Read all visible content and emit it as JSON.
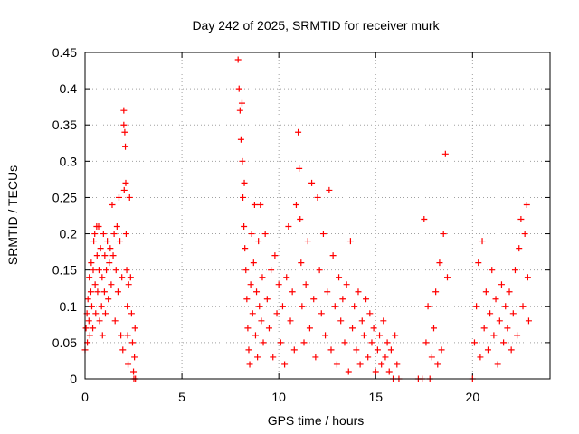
{
  "chart_data": {
    "type": "scatter",
    "title": "Day 242 of 2025, SRMTID for receiver murk",
    "xlabel": "GPS time / hours",
    "ylabel": "SRMTID / TECUs",
    "xlim": [
      0,
      24
    ],
    "ylim": [
      0,
      0.45
    ],
    "x_ticks": [
      0,
      5,
      10,
      15,
      20
    ],
    "y_ticks": [
      0,
      0.05,
      0.1,
      0.15,
      0.2,
      0.25,
      0.3,
      0.35,
      0.4,
      0.45
    ],
    "x_tick_labels": [
      "0",
      "5",
      "10",
      "15",
      "20"
    ],
    "y_tick_labels": [
      "0",
      "0.05",
      "0.1",
      "0.15",
      "0.2",
      "0.25",
      "0.3",
      "0.35",
      "0.4",
      "0.45"
    ],
    "grid": true,
    "marker": "+",
    "color": "#ff0000",
    "series": [
      {
        "points": [
          [
            0.0,
            0.04
          ],
          [
            0.05,
            0.07
          ],
          [
            0.1,
            0.09
          ],
          [
            0.12,
            0.05
          ],
          [
            0.15,
            0.11
          ],
          [
            0.2,
            0.08
          ],
          [
            0.22,
            0.14
          ],
          [
            0.25,
            0.06
          ],
          [
            0.3,
            0.12
          ],
          [
            0.32,
            0.16
          ],
          [
            0.35,
            0.1
          ],
          [
            0.4,
            0.07
          ],
          [
            0.42,
            0.15
          ],
          [
            0.45,
            0.19
          ],
          [
            0.5,
            0.2
          ],
          [
            0.52,
            0.13
          ],
          [
            0.55,
            0.09
          ],
          [
            0.6,
            0.21
          ],
          [
            0.62,
            0.17
          ],
          [
            0.65,
            0.12
          ],
          [
            0.7,
            0.21
          ],
          [
            0.72,
            0.15
          ],
          [
            0.75,
            0.08
          ],
          [
            0.8,
            0.18
          ],
          [
            0.85,
            0.1
          ],
          [
            0.88,
            0.14
          ],
          [
            0.9,
            0.06
          ],
          [
            0.95,
            0.2
          ],
          [
            1.0,
            0.12
          ],
          [
            1.02,
            0.17
          ],
          [
            1.05,
            0.09
          ],
          [
            1.1,
            0.15
          ],
          [
            1.15,
            0.19
          ],
          [
            1.2,
            0.11
          ],
          [
            1.25,
            0.16
          ],
          [
            1.3,
            0.18
          ],
          [
            1.35,
            0.13
          ],
          [
            1.4,
            0.24
          ],
          [
            1.45,
            0.17
          ],
          [
            1.5,
            0.2
          ],
          [
            1.55,
            0.08
          ],
          [
            1.6,
            0.15
          ],
          [
            1.65,
            0.21
          ],
          [
            1.7,
            0.12
          ],
          [
            1.75,
            0.25
          ],
          [
            1.8,
            0.19
          ],
          [
            1.85,
            0.06
          ],
          [
            1.9,
            0.14
          ],
          [
            1.95,
            0.04
          ],
          [
            2.0,
            0.35
          ],
          [
            2.0,
            0.37
          ],
          [
            2.02,
            0.26
          ],
          [
            2.05,
            0.34
          ],
          [
            2.08,
            0.32
          ],
          [
            2.1,
            0.27
          ],
          [
            2.12,
            0.2
          ],
          [
            2.15,
            0.15
          ],
          [
            2.18,
            0.1
          ],
          [
            2.2,
            0.06
          ],
          [
            2.22,
            0.02
          ],
          [
            2.25,
            0.13
          ],
          [
            2.3,
            0.25
          ],
          [
            2.35,
            0.14
          ],
          [
            2.4,
            0.09
          ],
          [
            2.45,
            0.05
          ],
          [
            2.5,
            0.01
          ],
          [
            2.52,
            0.0
          ],
          [
            2.55,
            0.03
          ],
          [
            2.58,
            0.07
          ],
          [
            2.6,
            0.0
          ],
          [
            7.9,
            0.44
          ],
          [
            7.95,
            0.4
          ],
          [
            8.0,
            0.37
          ],
          [
            8.05,
            0.33
          ],
          [
            8.1,
            0.38
          ],
          [
            8.12,
            0.3
          ],
          [
            8.15,
            0.25
          ],
          [
            8.2,
            0.21
          ],
          [
            8.22,
            0.27
          ],
          [
            8.25,
            0.18
          ],
          [
            8.3,
            0.15
          ],
          [
            8.35,
            0.11
          ],
          [
            8.4,
            0.07
          ],
          [
            8.45,
            0.04
          ],
          [
            8.5,
            0.02
          ],
          [
            8.55,
            0.13
          ],
          [
            8.6,
            0.2
          ],
          [
            8.65,
            0.09
          ],
          [
            8.7,
            0.16
          ],
          [
            8.75,
            0.24
          ],
          [
            8.8,
            0.06
          ],
          [
            8.85,
            0.12
          ],
          [
            8.9,
            0.03
          ],
          [
            8.95,
            0.19
          ],
          [
            9.0,
            0.1
          ],
          [
            9.05,
            0.24
          ],
          [
            9.1,
            0.08
          ],
          [
            9.15,
            0.14
          ],
          [
            9.2,
            0.05
          ],
          [
            9.3,
            0.2
          ],
          [
            9.4,
            0.11
          ],
          [
            9.5,
            0.07
          ],
          [
            9.6,
            0.15
          ],
          [
            9.7,
            0.03
          ],
          [
            9.8,
            0.17
          ],
          [
            9.9,
            0.09
          ],
          [
            10.0,
            0.13
          ],
          [
            10.1,
            0.05
          ],
          [
            10.2,
            0.1
          ],
          [
            10.3,
            0.02
          ],
          [
            10.4,
            0.14
          ],
          [
            10.5,
            0.21
          ],
          [
            10.6,
            0.08
          ],
          [
            10.7,
            0.12
          ],
          [
            10.8,
            0.04
          ],
          [
            10.9,
            0.24
          ],
          [
            11.0,
            0.34
          ],
          [
            11.05,
            0.29
          ],
          [
            11.1,
            0.22
          ],
          [
            11.15,
            0.16
          ],
          [
            11.2,
            0.1
          ],
          [
            11.3,
            0.05
          ],
          [
            11.4,
            0.13
          ],
          [
            11.5,
            0.19
          ],
          [
            11.6,
            0.07
          ],
          [
            11.7,
            0.27
          ],
          [
            11.8,
            0.11
          ],
          [
            11.9,
            0.03
          ],
          [
            12.0,
            0.25
          ],
          [
            12.1,
            0.15
          ],
          [
            12.2,
            0.09
          ],
          [
            12.3,
            0.2
          ],
          [
            12.4,
            0.06
          ],
          [
            12.5,
            0.12
          ],
          [
            12.6,
            0.26
          ],
          [
            12.7,
            0.04
          ],
          [
            12.8,
            0.17
          ],
          [
            12.9,
            0.1
          ],
          [
            13.0,
            0.02
          ],
          [
            13.1,
            0.14
          ],
          [
            13.2,
            0.08
          ],
          [
            13.3,
            0.11
          ],
          [
            13.4,
            0.05
          ],
          [
            13.5,
            0.13
          ],
          [
            13.6,
            0.01
          ],
          [
            13.7,
            0.19
          ],
          [
            13.8,
            0.07
          ],
          [
            13.9,
            0.1
          ],
          [
            14.0,
            0.04
          ],
          [
            14.1,
            0.12
          ],
          [
            14.2,
            0.02
          ],
          [
            14.3,
            0.08
          ],
          [
            14.4,
            0.06
          ],
          [
            14.5,
            0.11
          ],
          [
            14.6,
            0.03
          ],
          [
            14.7,
            0.09
          ],
          [
            14.8,
            0.05
          ],
          [
            14.9,
            0.07
          ],
          [
            15.0,
            0.01
          ],
          [
            15.1,
            0.04
          ],
          [
            15.2,
            0.06
          ],
          [
            15.3,
            0.02
          ],
          [
            15.4,
            0.08
          ],
          [
            15.5,
            0.03
          ],
          [
            15.6,
            0.05
          ],
          [
            15.7,
            0.01
          ],
          [
            15.8,
            0.04
          ],
          [
            15.9,
            0.0
          ],
          [
            16.0,
            0.06
          ],
          [
            16.1,
            0.02
          ],
          [
            16.2,
            0.0
          ],
          [
            17.2,
            0.0
          ],
          [
            17.4,
            0.0
          ],
          [
            17.5,
            0.22
          ],
          [
            17.6,
            0.05
          ],
          [
            17.7,
            0.1
          ],
          [
            17.8,
            0.0
          ],
          [
            17.9,
            0.03
          ],
          [
            18.0,
            0.07
          ],
          [
            18.1,
            0.12
          ],
          [
            18.2,
            0.02
          ],
          [
            18.3,
            0.16
          ],
          [
            18.4,
            0.04
          ],
          [
            18.5,
            0.2
          ],
          [
            18.6,
            0.31
          ],
          [
            18.7,
            0.14
          ],
          [
            20.0,
            0.0
          ],
          [
            20.1,
            0.05
          ],
          [
            20.2,
            0.1
          ],
          [
            20.3,
            0.16
          ],
          [
            20.4,
            0.03
          ],
          [
            20.5,
            0.19
          ],
          [
            20.6,
            0.07
          ],
          [
            20.7,
            0.12
          ],
          [
            20.8,
            0.04
          ],
          [
            20.9,
            0.09
          ],
          [
            21.0,
            0.15
          ],
          [
            21.1,
            0.06
          ],
          [
            21.2,
            0.11
          ],
          [
            21.3,
            0.02
          ],
          [
            21.4,
            0.08
          ],
          [
            21.5,
            0.13
          ],
          [
            21.6,
            0.05
          ],
          [
            21.7,
            0.1
          ],
          [
            21.8,
            0.07
          ],
          [
            21.9,
            0.12
          ],
          [
            22.0,
            0.04
          ],
          [
            22.1,
            0.09
          ],
          [
            22.2,
            0.15
          ],
          [
            22.3,
            0.06
          ],
          [
            22.4,
            0.18
          ],
          [
            22.5,
            0.22
          ],
          [
            22.6,
            0.1
          ],
          [
            22.7,
            0.2
          ],
          [
            22.8,
            0.24
          ],
          [
            22.85,
            0.14
          ],
          [
            22.9,
            0.08
          ]
        ]
      }
    ]
  }
}
